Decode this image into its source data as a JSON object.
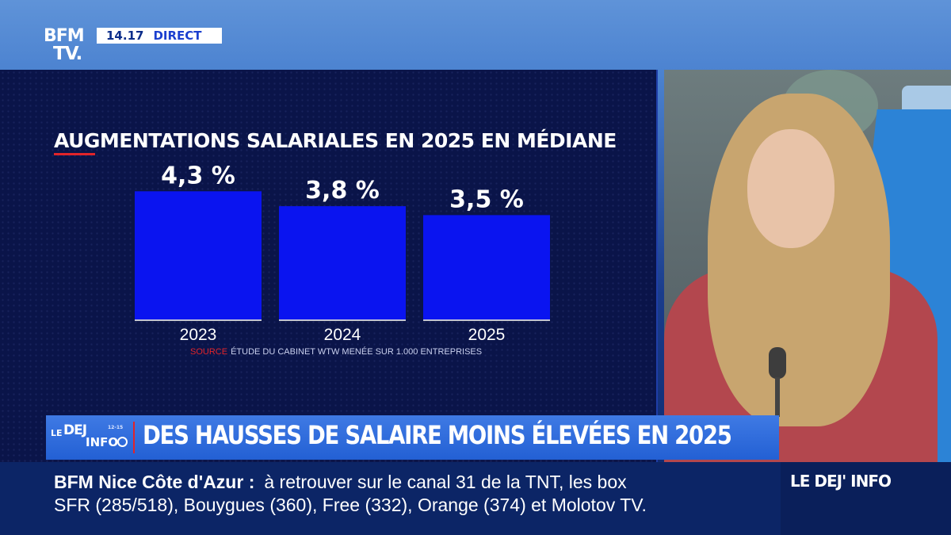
{
  "header": {
    "logo_line1": "BFM",
    "logo_line2": "TV.",
    "time": "14.17",
    "live_label": "DIRECT"
  },
  "chart_data": {
    "type": "bar",
    "title": "AUGMENTATIONS SALARIALES EN 2025 EN MÉDIANE",
    "categories": [
      "2023",
      "2024",
      "2025"
    ],
    "values": [
      4.3,
      3.8,
      3.5
    ],
    "value_labels": [
      "4,3 %",
      "3,8 %",
      "3,5 %"
    ],
    "unit": "%",
    "xlabel": "",
    "ylabel": "",
    "bar_color": "#0a14f0",
    "grid": false,
    "source_tag": "SOURCE",
    "source_text": "ÉTUDE DU CABINET WTW MENÉE SUR 1.000 ENTREPRISES"
  },
  "banner": {
    "show_logo_le": "LE",
    "show_logo_dej": "DEJ",
    "show_logo_hours": "12-15",
    "show_logo_info": "INFO",
    "headline": "DES HAUSSES DE SALAIRE MOINS ÉLEVÉES EN 2025",
    "accent_color": "#e1242a"
  },
  "ticker": {
    "station": "BFM Nice Côte d'Azur  :",
    "line1": "à retrouver sur le canal 31 de la TNT, les box",
    "line2": "SFR (285/518), Bouygues (360), Free (332), Orange (374) et Molotov TV.",
    "program_tag": "LE DEJ' INFO"
  }
}
